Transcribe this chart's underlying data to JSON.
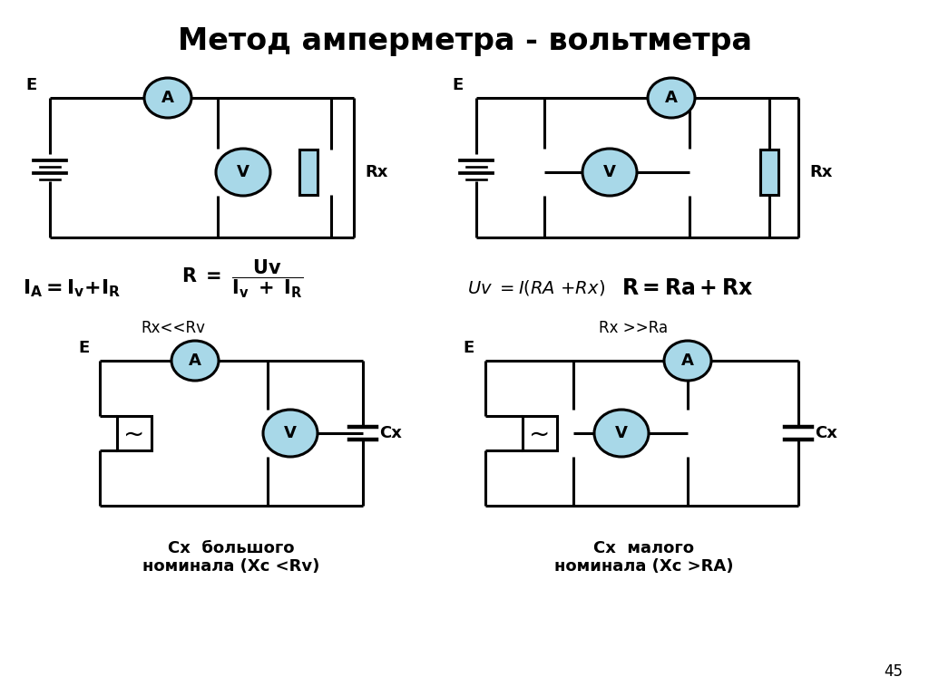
{
  "title": "Метод амперметра - вольтметра",
  "title_fontsize": 24,
  "bg_color": "#ffffff",
  "circle_fill": "#a8d8e8",
  "line_color": "black",
  "line_width": 2.2,
  "label_rx_tl": "Rx",
  "label_rx_tr": "Rx",
  "label_e_tl": "E",
  "label_e_tr": "E",
  "label_e_bl": "E",
  "label_e_br": "E",
  "label_cx_bl": "Cx",
  "label_cx_br": "Cx",
  "label_rxrv": "Rx<<Rv",
  "label_rxra": "Rx >>Ra",
  "label_bottom_left_l1": "Cx  большого",
  "label_bottom_left_l2": "номинала (Xc <Rv)",
  "label_bottom_right_l1": "Cx  малого",
  "label_bottom_right_l2": "номинала (Xc >RA)",
  "page_number": "45"
}
